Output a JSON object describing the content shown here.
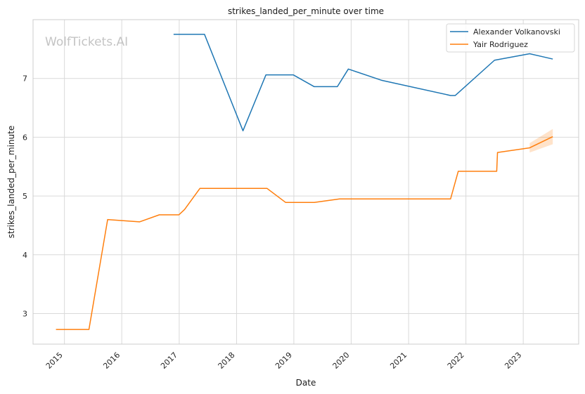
{
  "watermark": "WolfTickets.AI",
  "chart_data": {
    "type": "line",
    "title": "strikes_landed_per_minute over time",
    "xlabel": "Date",
    "ylabel": "strikes_landed_per_minute",
    "x_ticks": [
      "2015",
      "2016",
      "2017",
      "2018",
      "2019",
      "2020",
      "2021",
      "2022",
      "2023"
    ],
    "y_ticks": [
      3,
      4,
      5,
      6,
      7
    ],
    "xlim": [
      "2014-06-15",
      "2023-12-20"
    ],
    "ylim": [
      2.48,
      8.0
    ],
    "grid": true,
    "legend": "top-right",
    "series": [
      {
        "name": "Alexander Volkanovski",
        "color": "#1f77b4",
        "points": [
          [
            "2016-11-26",
            7.75
          ],
          [
            "2017-06-11",
            7.75
          ],
          [
            "2018-02-11",
            6.11
          ],
          [
            "2018-07-07",
            7.06
          ],
          [
            "2018-12-29",
            7.06
          ],
          [
            "2019-05-11",
            6.86
          ],
          [
            "2019-10-05",
            6.86
          ],
          [
            "2019-12-14",
            7.16
          ],
          [
            "2020-07-11",
            6.97
          ],
          [
            "2021-09-25",
            6.71
          ],
          [
            "2021-10-25",
            6.71
          ],
          [
            "2022-07-02",
            7.31
          ],
          [
            "2023-02-11",
            7.42
          ],
          [
            "2023-07-08",
            7.33
          ]
        ]
      },
      {
        "name": "Yair Rodriguez",
        "color": "#ff7f0e",
        "points": [
          [
            "2014-11-08",
            2.73
          ],
          [
            "2015-06-06",
            2.73
          ],
          [
            "2015-10-03",
            4.6
          ],
          [
            "2016-04-23",
            4.56
          ],
          [
            "2016-08-27",
            4.68
          ],
          [
            "2016-12-30",
            4.68
          ],
          [
            "2017-02-04",
            4.77
          ],
          [
            "2017-05-13",
            5.13
          ],
          [
            "2018-07-14",
            5.13
          ],
          [
            "2018-11-10",
            4.89
          ],
          [
            "2019-05-11",
            4.89
          ],
          [
            "2019-10-19",
            4.95
          ],
          [
            "2021-09-25",
            4.95
          ],
          [
            "2021-11-13",
            5.42
          ],
          [
            "2022-07-16",
            5.42
          ],
          [
            "2022-07-21",
            5.74
          ],
          [
            "2023-02-11",
            5.82
          ],
          [
            "2023-07-08",
            6.01
          ]
        ],
        "band": [
          [
            "2023-02-11",
            5.74,
            5.9
          ],
          [
            "2023-07-08",
            5.88,
            6.14
          ]
        ]
      }
    ]
  }
}
